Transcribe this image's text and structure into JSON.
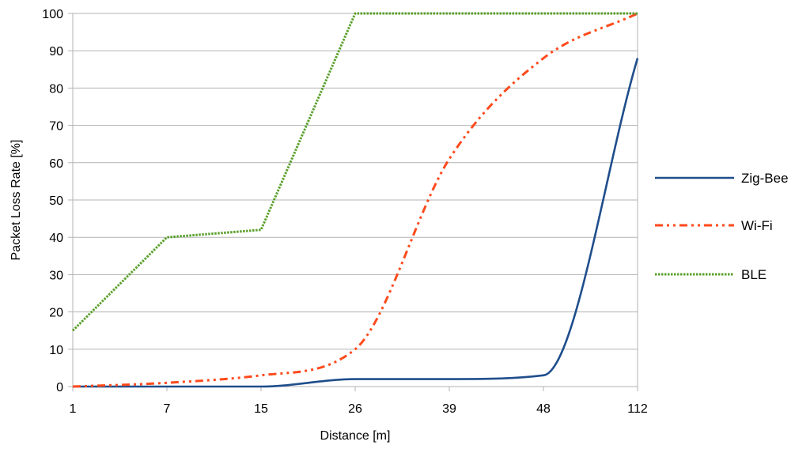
{
  "chart_data": {
    "type": "line",
    "title": "",
    "xlabel": "Distance [m]",
    "ylabel": "Packet Loss Rate [%]",
    "categories": [
      "1",
      "7",
      "15",
      "26",
      "39",
      "48",
      "112"
    ],
    "ylim": [
      0,
      100
    ],
    "yticks": [
      0,
      10,
      20,
      30,
      40,
      50,
      60,
      70,
      80,
      90,
      100
    ],
    "grid": true,
    "legend_position": "right",
    "series": [
      {
        "name": "Zig-Bee",
        "values": [
          0,
          0,
          0,
          2,
          2,
          3,
          88
        ],
        "color": "#1f4e8c",
        "line_style": "solid",
        "smooth": true
      },
      {
        "name": "Wi-Fi",
        "values": [
          0,
          1,
          3,
          10,
          61,
          88,
          100
        ],
        "color": "#ff4a1c",
        "line_style": "dash-dot-dot",
        "smooth": true
      },
      {
        "name": "BLE",
        "values": [
          15,
          40,
          42,
          100,
          100,
          100,
          100
        ],
        "color": "#5aa02c",
        "line_style": "dotted",
        "smooth": false
      }
    ]
  }
}
